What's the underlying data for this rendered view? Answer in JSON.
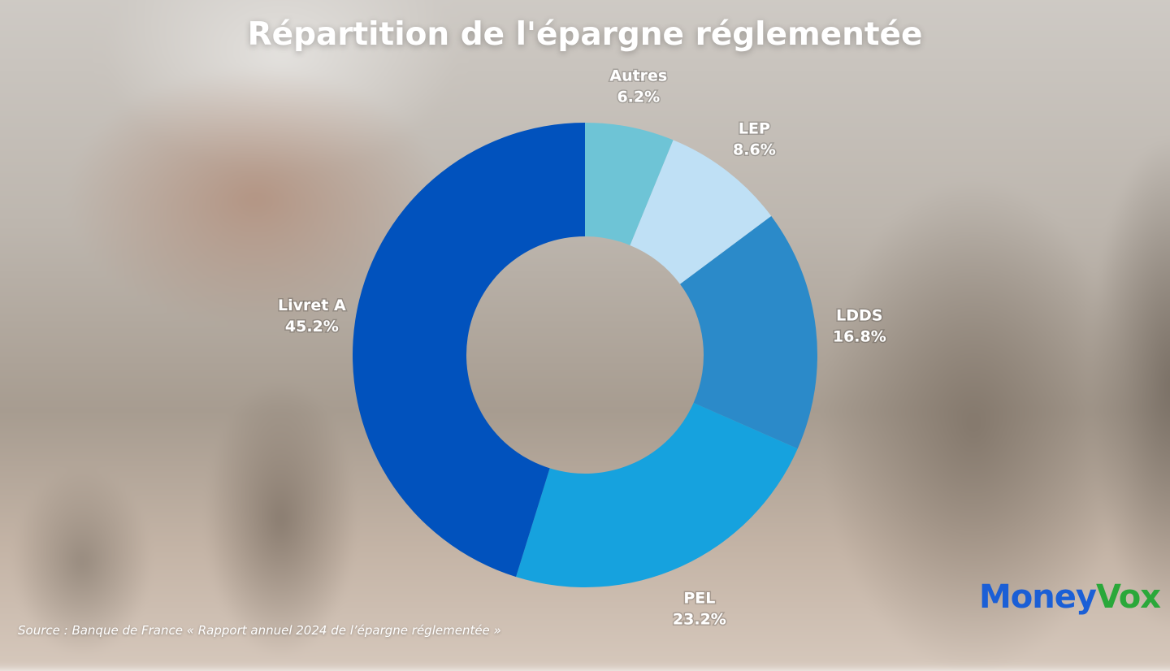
{
  "title": "Répartition de l'épargne réglementée",
  "source": "Source : Banque de France « Rapport annuel 2024 de l’épargne réglementée »",
  "logo": {
    "part1": "Money",
    "part2": "Vox"
  },
  "colors": {
    "Autres": "#6ec4d6",
    "LEP": "#bfe0f5",
    "LDDS": "#2b8ac9",
    "PEL": "#16a2de",
    "Livret A": "#0152bd"
  },
  "chart_data": {
    "type": "pie",
    "title": "Répartition de l'épargne réglementée",
    "donut": true,
    "categories": [
      "Autres",
      "LEP",
      "LDDS",
      "PEL",
      "Livret A"
    ],
    "values": [
      6.2,
      8.6,
      16.8,
      23.2,
      45.2
    ],
    "value_labels": [
      "6.2%",
      "8.6%",
      "16.8%",
      "23.2%",
      "45.2%"
    ],
    "unit": "%"
  }
}
